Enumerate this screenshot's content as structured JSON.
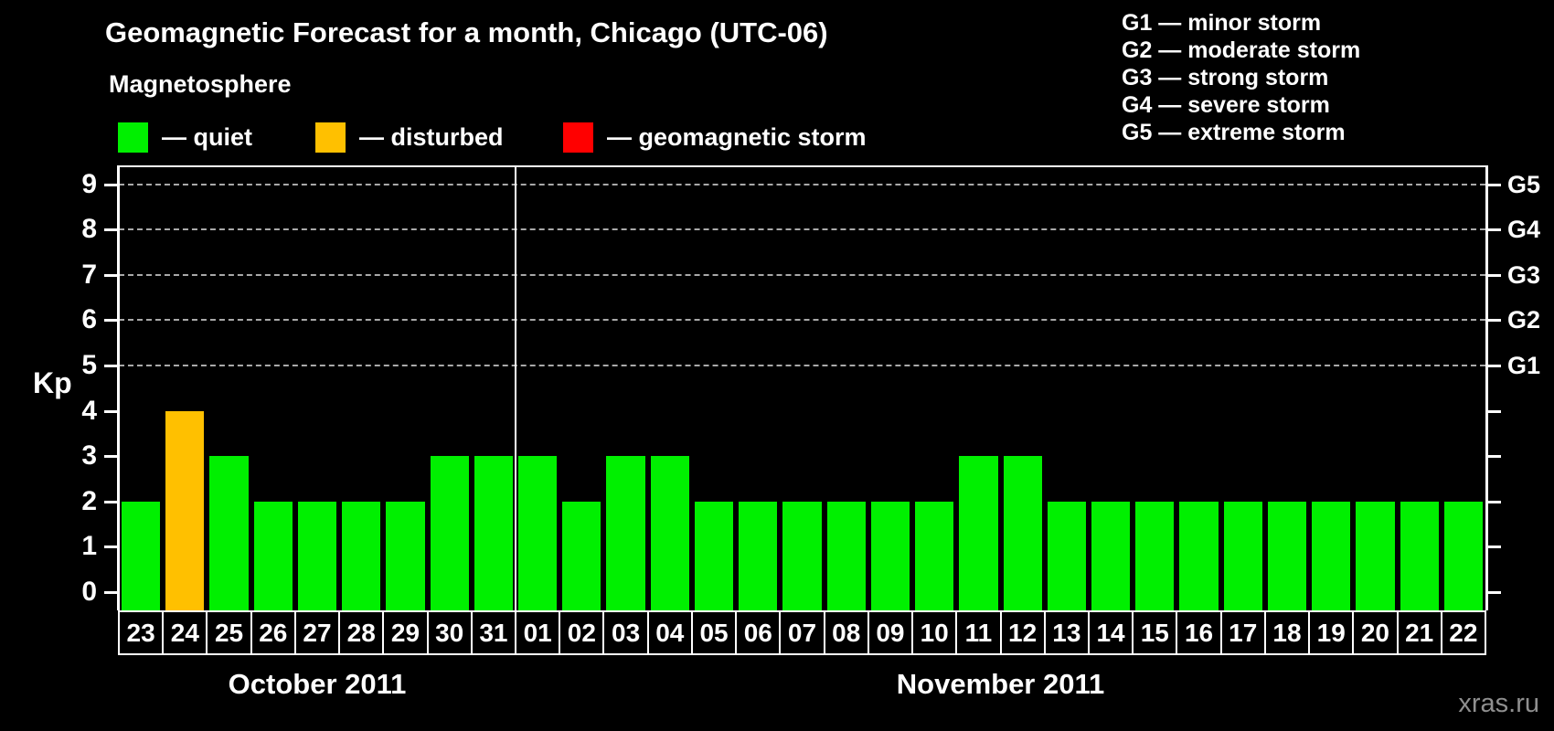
{
  "title": "Geomagnetic Forecast for a month, Chicago (UTC-06)",
  "legend": {
    "heading": "Magnetosphere",
    "items": [
      {
        "name": "quiet",
        "label": "— quiet",
        "color": "#00f000"
      },
      {
        "name": "disturbed",
        "label": "— disturbed",
        "color": "#ffc000"
      },
      {
        "name": "geomagnetic-storm",
        "label": "— geomagnetic storm",
        "color": "#ff0000"
      }
    ]
  },
  "storm_scale": [
    {
      "code": "G1",
      "label": "G1 — minor storm"
    },
    {
      "code": "G2",
      "label": "G2 — moderate storm"
    },
    {
      "code": "G3",
      "label": "G3 — strong storm"
    },
    {
      "code": "G4",
      "label": "G4 — severe storm"
    },
    {
      "code": "G5",
      "label": "G5 — extreme storm"
    }
  ],
  "watermark": "xras.ru",
  "chart_data": {
    "type": "bar",
    "ylabel": "Kp",
    "ylim": [
      0,
      9
    ],
    "y_ticks": [
      0,
      1,
      2,
      3,
      4,
      5,
      6,
      7,
      8,
      9
    ],
    "gridlines_at": [
      5,
      6,
      7,
      8,
      9
    ],
    "grid": "dashed-horizontal",
    "legend_position": "top-left",
    "right_axis": [
      {
        "kp": 5,
        "label": "G1"
      },
      {
        "kp": 6,
        "label": "G2"
      },
      {
        "kp": 7,
        "label": "G3"
      },
      {
        "kp": 8,
        "label": "G4"
      },
      {
        "kp": 9,
        "label": "G5"
      }
    ],
    "bar_status_colors": {
      "quiet": "#00f000",
      "disturbed": "#ffc000",
      "storm": "#ff0000"
    },
    "months": [
      {
        "label": "October 2011",
        "days": [
          "23",
          "24",
          "25",
          "26",
          "27",
          "28",
          "29",
          "30",
          "31"
        ],
        "values": [
          2,
          4,
          3,
          2,
          2,
          2,
          2,
          3,
          3
        ],
        "status": [
          "quiet",
          "disturbed",
          "quiet",
          "quiet",
          "quiet",
          "quiet",
          "quiet",
          "quiet",
          "quiet"
        ]
      },
      {
        "label": "November 2011",
        "days": [
          "01",
          "02",
          "03",
          "04",
          "05",
          "06",
          "07",
          "08",
          "09",
          "10",
          "11",
          "12",
          "13",
          "14",
          "15",
          "16",
          "17",
          "18",
          "19",
          "20",
          "21",
          "22"
        ],
        "values": [
          3,
          2,
          3,
          3,
          2,
          2,
          2,
          2,
          2,
          2,
          3,
          3,
          2,
          2,
          2,
          2,
          2,
          2,
          2,
          2,
          2,
          2
        ],
        "status": [
          "quiet",
          "quiet",
          "quiet",
          "quiet",
          "quiet",
          "quiet",
          "quiet",
          "quiet",
          "quiet",
          "quiet",
          "quiet",
          "quiet",
          "quiet",
          "quiet",
          "quiet",
          "quiet",
          "quiet",
          "quiet",
          "quiet",
          "quiet",
          "quiet",
          "quiet"
        ]
      }
    ]
  }
}
